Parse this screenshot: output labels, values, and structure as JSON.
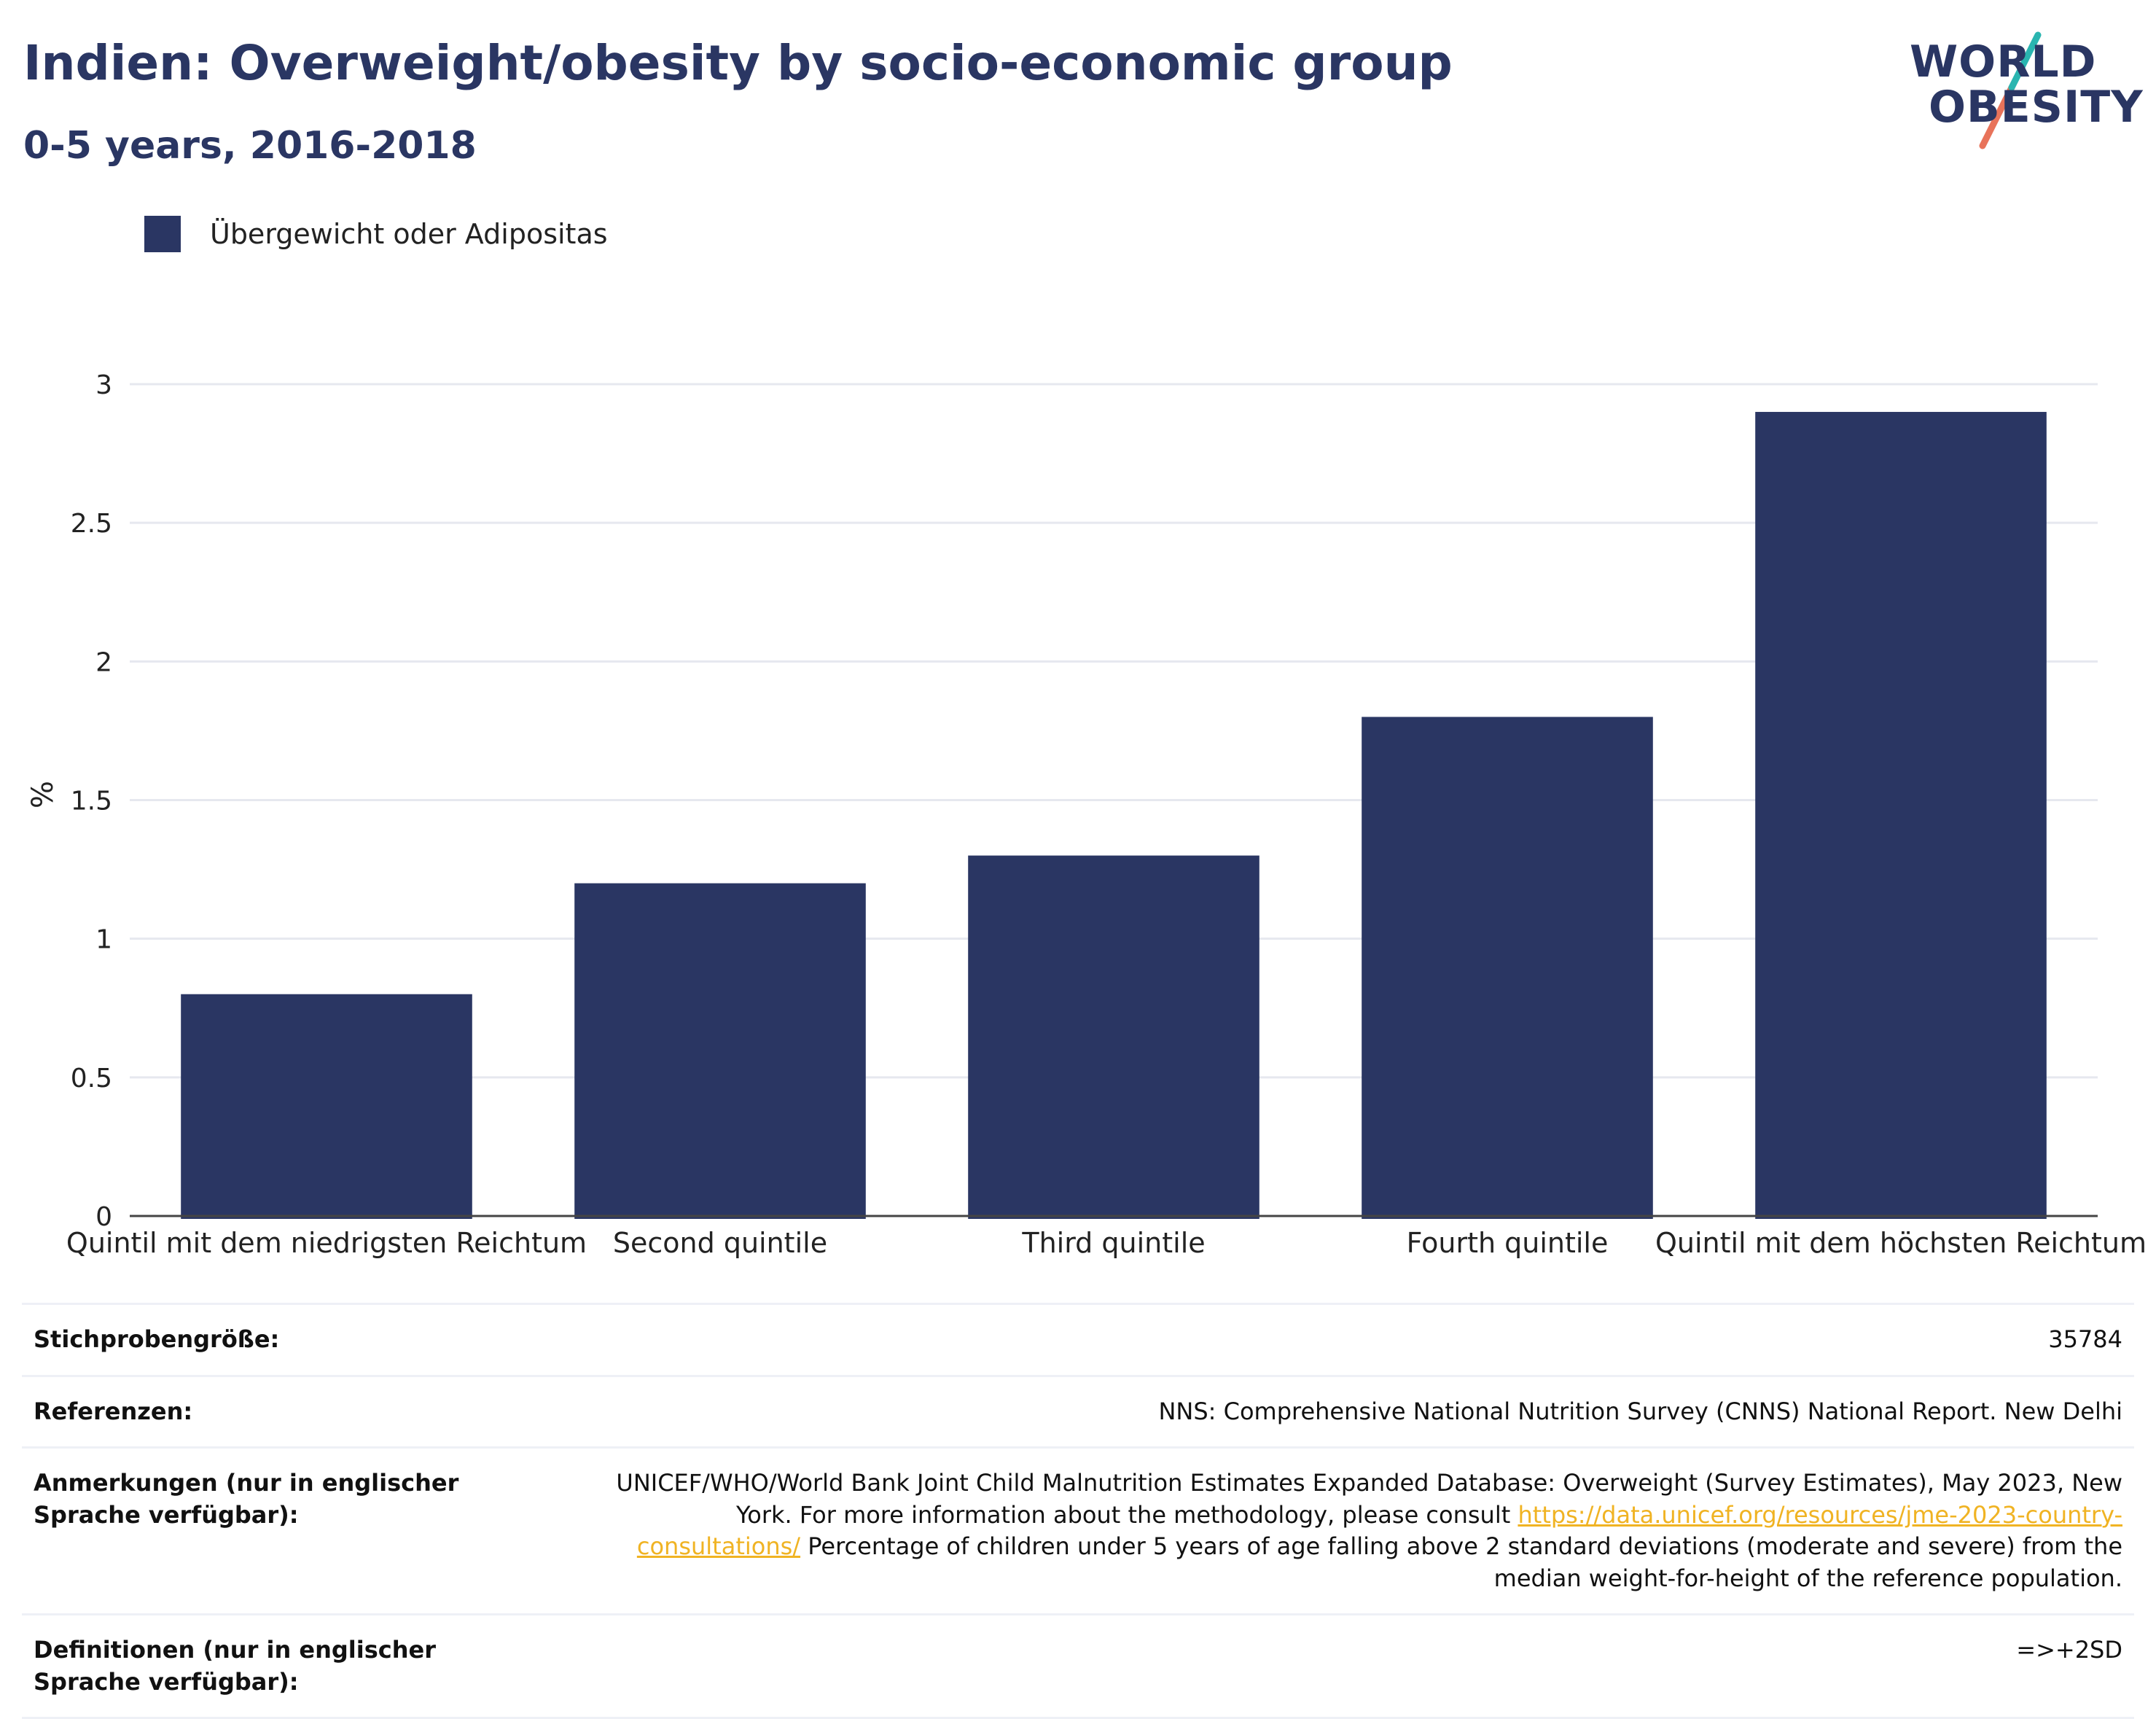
{
  "header": {
    "title": "Indien: Overweight/obesity by socio-economic group",
    "subtitle": "0-5 years, 2016-2018"
  },
  "logo": {
    "line1": "WORLD",
    "line2": "OBESITY"
  },
  "colors": {
    "bar": "#2a3663",
    "text": "#2a3663",
    "accent_teal": "#2ab5b0",
    "accent_coral": "#e8735a"
  },
  "legend": {
    "label": "Übergewicht oder Adipositas"
  },
  "chart_data": {
    "type": "bar",
    "title": "Indien: Overweight/obesity by socio-economic group",
    "subtitle": "0-5 years, 2016-2018",
    "xlabel": "",
    "ylabel": "%",
    "ylim": [
      0,
      3
    ],
    "yticks": [
      "0",
      "0.5",
      "1",
      "1.5",
      "2",
      "2.5",
      "3"
    ],
    "grid": true,
    "legend_position": "top-left",
    "categories": [
      "Quintil mit dem niedrigsten Reichtum",
      "Second quintile",
      "Third quintile",
      "Fourth quintile",
      "Quintil mit dem höchsten Reichtum"
    ],
    "series": [
      {
        "name": "Übergewicht oder Adipositas",
        "values": [
          0.8,
          1.2,
          1.3,
          1.8,
          2.9
        ]
      }
    ]
  },
  "info_table": {
    "sample_size_label": "Stichprobengröße:",
    "sample_size_value": "35784",
    "references_label": "Referenzen:",
    "references_value": "NNS: Comprehensive National Nutrition Survey (CNNS) National Report. New Delhi",
    "notes_label": "Anmerkungen (nur in englischer Sprache verfügbar):",
    "notes_value_1": "UNICEF/WHO/World Bank Joint Child Malnutrition Estimates Expanded Database: Overweight (Survey Estimates), May 2023, New York. For more information about the methodology, please consult ",
    "notes_link": "https://data.unicef.org/resources/jme-2023-country-consultations/",
    "notes_value_2": " Percentage of children under 5 years of age falling above 2 standard deviations (moderate and severe) from the median weight-for-height of the reference population.",
    "definitions_label": "Definitionen (nur in englischer Sprache verfügbar):",
    "definitions_value": "=>+2SD"
  }
}
